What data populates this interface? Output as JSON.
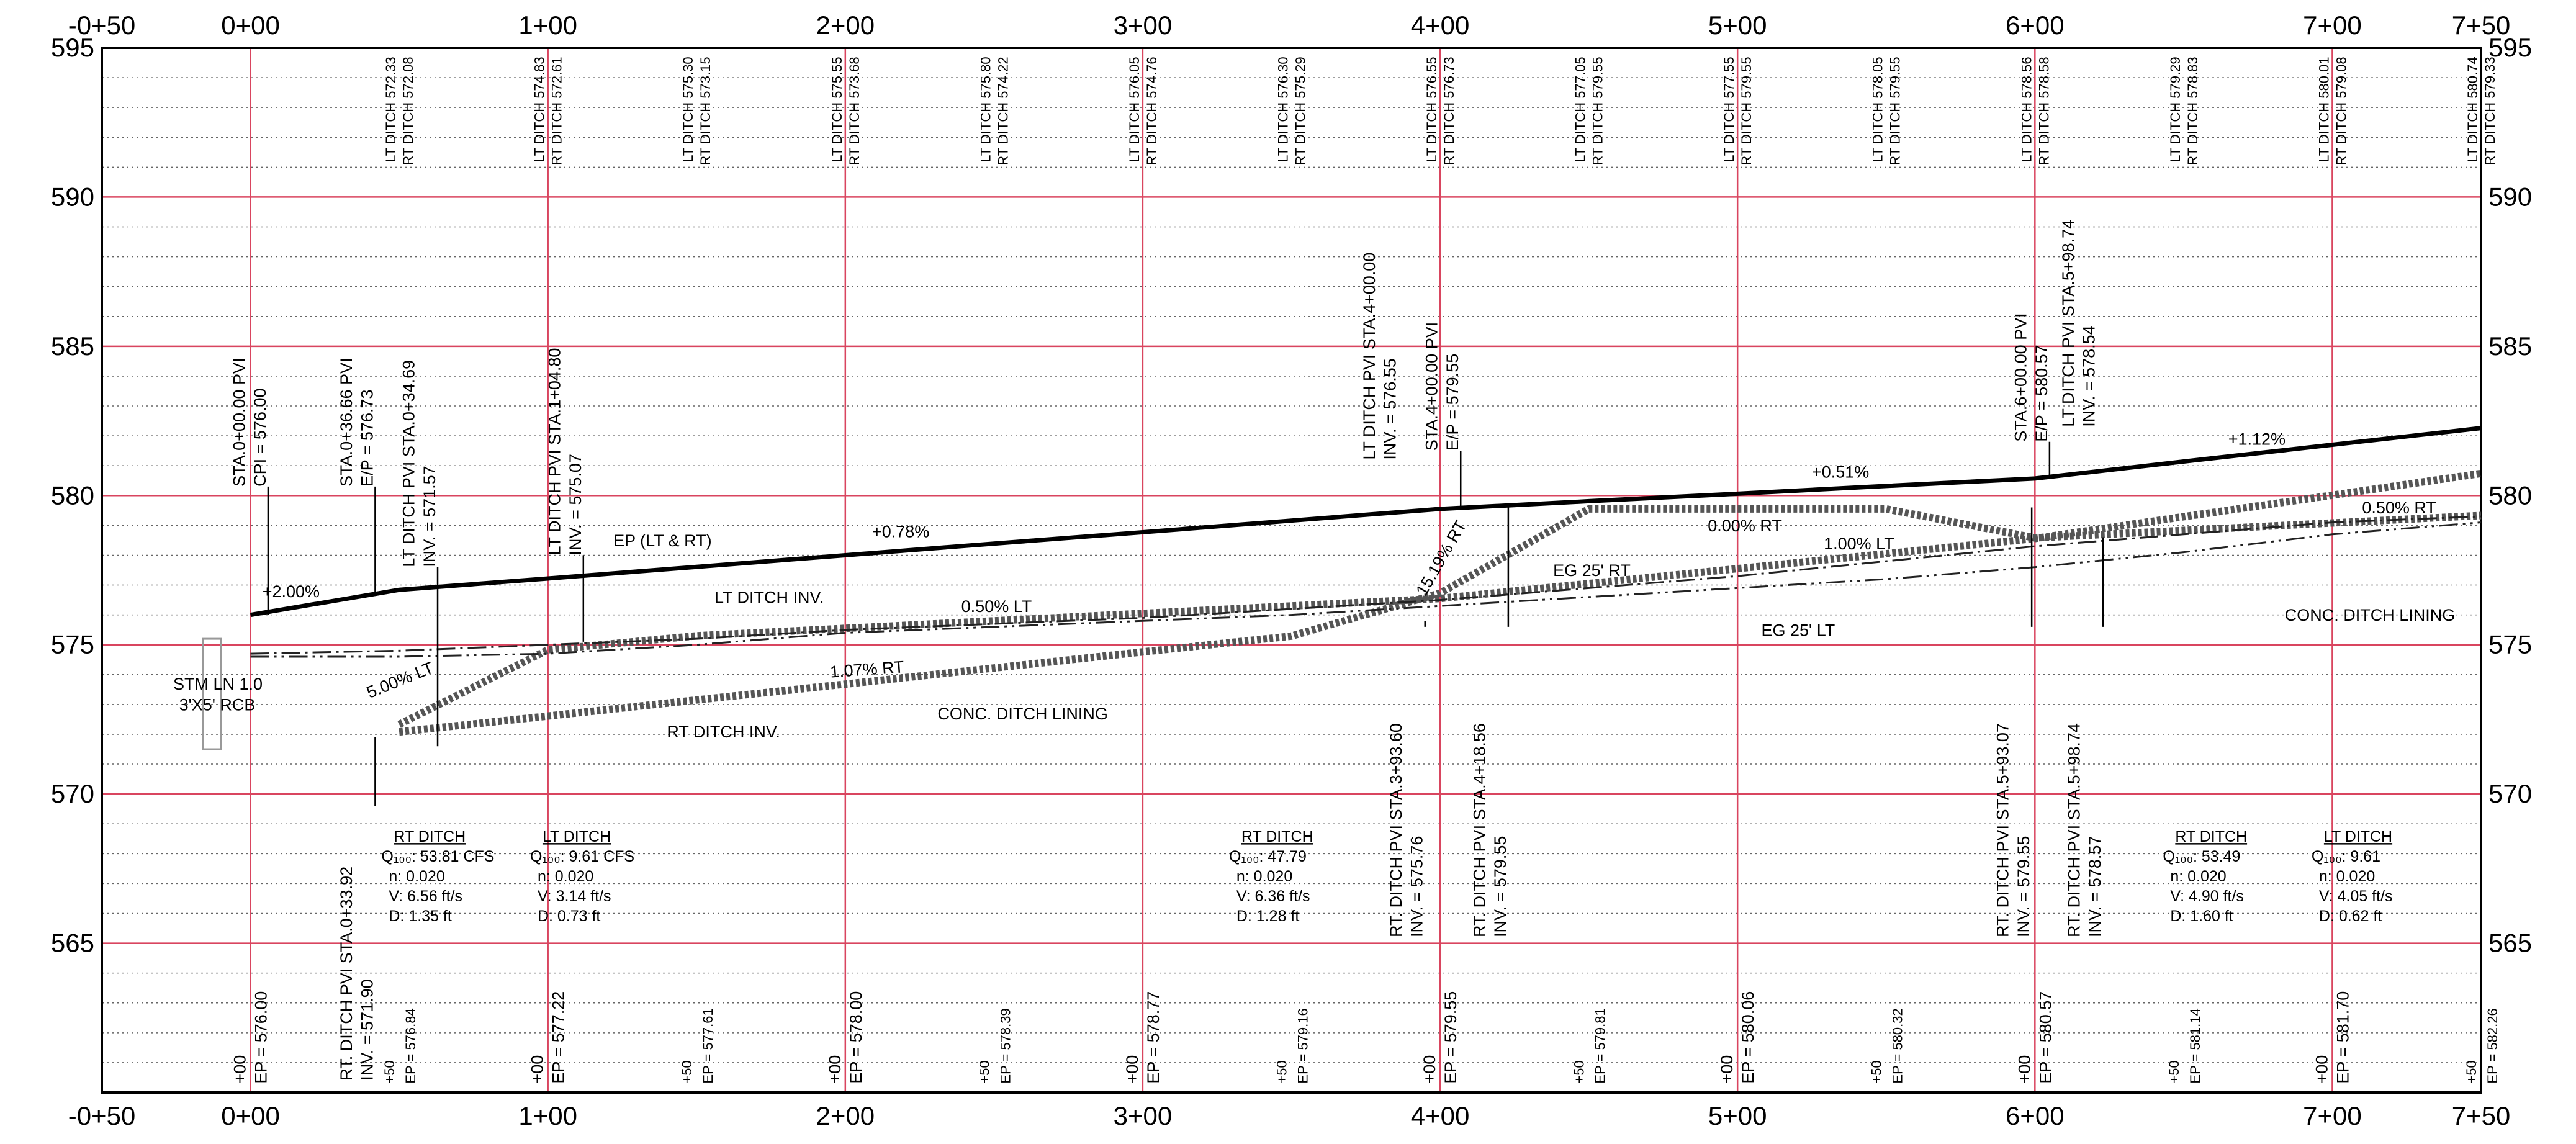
{
  "chart_data": {
    "type": "line",
    "xlim": [
      -50,
      750
    ],
    "xticks": [
      {
        "value": -50,
        "label": "-0+50"
      },
      {
        "value": 0,
        "label": "0+00"
      },
      {
        "value": 100,
        "label": "1+00"
      },
      {
        "value": 200,
        "label": "2+00"
      },
      {
        "value": 300,
        "label": "3+00"
      },
      {
        "value": 400,
        "label": "4+00"
      },
      {
        "value": 500,
        "label": "5+00"
      },
      {
        "value": 600,
        "label": "6+00"
      },
      {
        "value": 700,
        "label": "7+00"
      },
      {
        "value": 750,
        "label": "7+50"
      }
    ],
    "ylim": [
      560,
      595
    ],
    "yticks": [
      565,
      570,
      575,
      580,
      585,
      590,
      595
    ],
    "grid": true,
    "minor_grid": true,
    "x": [
      0,
      50,
      100,
      150,
      200,
      250,
      300,
      350,
      400,
      450,
      500,
      550,
      600,
      650,
      700,
      750
    ],
    "station_labels": [
      "+00",
      "+50",
      "+00",
      "+50",
      "+00",
      "+50",
      "+00",
      "+50",
      "+00",
      "+50",
      "+00",
      "+50",
      "+00",
      "+50",
      "+00",
      "+50"
    ],
    "series": [
      {
        "name": "EP (LT & RT)",
        "color": "#000000",
        "values": [
          576.0,
          576.84,
          577.22,
          577.61,
          578.0,
          578.39,
          578.77,
          579.16,
          579.55,
          579.81,
          580.06,
          580.32,
          580.57,
          581.14,
          581.7,
          582.26
        ],
        "value_labels": [
          "EP = 576.00",
          "EP = 576.84",
          "EP = 577.22",
          "EP = 577.61",
          "EP = 578.00",
          "EP = 578.39",
          "EP = 578.77",
          "EP = 579.16",
          "EP = 579.55",
          "EP = 579.81",
          "EP = 580.06",
          "EP = 580.32",
          "EP = 580.57",
          "EP = 581.14",
          "EP = 581.70",
          "EP = 582.26"
        ]
      },
      {
        "name": "LT DITCH INV.",
        "color": "#555555",
        "values": [
          null,
          572.33,
          574.83,
          575.3,
          575.55,
          575.8,
          576.05,
          576.3,
          576.55,
          577.05,
          577.55,
          578.05,
          578.56,
          579.29,
          580.01,
          580.74
        ],
        "value_labels": [
          null,
          "LT DITCH 572.33",
          "LT DITCH 574.83",
          "LT DITCH 575.30",
          "LT DITCH 575.55",
          "LT DITCH 575.80",
          "LT DITCH 576.05",
          "LT DITCH 576.30",
          "LT DITCH 576.55",
          "LT DITCH 577.05",
          "LT DITCH 577.55",
          "LT DITCH 578.05",
          "LT DITCH 578.56",
          "LT DITCH 579.29",
          "LT DITCH 580.01",
          "LT DITCH 580.74"
        ]
      },
      {
        "name": "RT DITCH INV.",
        "color": "#555555",
        "values": [
          null,
          572.08,
          572.61,
          573.15,
          573.68,
          574.22,
          574.76,
          575.29,
          576.73,
          579.55,
          579.55,
          579.55,
          578.58,
          578.83,
          579.08,
          579.33
        ],
        "value_labels": [
          null,
          "RT DITCH 572.08",
          "RT DITCH 572.61",
          "RT DITCH 573.15",
          "RT DITCH 573.68",
          "RT DITCH 574.22",
          "RT DITCH 574.76",
          "RT DITCH 575.29",
          "RT DITCH 576.73",
          "RT DITCH 579.55",
          "RT DITCH 579.55",
          "RT DITCH 579.55",
          "RT DITCH 578.58",
          "RT DITCH 578.83",
          "RT DITCH 579.08",
          "RT DITCH 579.33"
        ]
      },
      {
        "name": "EG 25' RT",
        "color": "#222222",
        "values": [
          574.7,
          574.8,
          575.0,
          575.2,
          575.5,
          575.7,
          575.9,
          576.2,
          576.5,
          576.9,
          577.3,
          577.8,
          578.3,
          578.7,
          579.1,
          579.3
        ]
      },
      {
        "name": "EG 25' LT",
        "color": "#222222",
        "values": [
          574.6,
          574.6,
          574.7,
          575.0,
          575.4,
          575.6,
          575.8,
          576.0,
          576.3,
          576.6,
          576.9,
          577.2,
          577.6,
          578.1,
          578.7,
          579.1
        ]
      }
    ],
    "annotations": [
      "STA.0+00.00 PVI",
      "CPI = 576.00",
      "STA.0+36.66 PVI",
      "E/P = 576.73",
      "LT DITCH PVI STA.0+34.69",
      "INV. = 571.57",
      "LT DITCH PVI STA.1+04.80",
      "INV. = 575.07",
      "LT DITCH PVI STA.4+00.00",
      "INV. = 576.55",
      "STA.4+00.00 PVI",
      "E/P = 579.55",
      "STA.6+00.00 PVI",
      "E/P = 580.57",
      "LT DITCH PVI STA.5+98.74",
      "INV. = 578.54",
      "RT. DITCH PVI STA.0+33.92",
      "INV. = 571.90",
      "RT. DITCH PVI STA.3+93.60",
      "INV. = 575.76",
      "RT. DITCH PVI STA.4+18.56",
      "INV. = 579.55",
      "RT. DITCH PVI STA.5+93.07",
      "INV. = 579.55",
      "RT. DITCH PVI STA.5+98.74",
      "INV. = 578.57",
      "+2.00%",
      "+0.78%",
      "+0.51%",
      "+1.12%",
      "0.50% LT",
      "1.07% RT",
      "5.00% LT",
      "15.19% RT",
      "0.00% RT",
      "1.00% LT",
      "0.50% RT",
      "CONC. DITCH LINING",
      "CONC. DITCH LINING",
      "STM LN 1.0",
      "3'X5' RCB"
    ],
    "ditch_tables": [
      {
        "title": "RT DITCH",
        "lines": [
          "Q₁₀₀: 53.81 CFS",
          "n: 0.020",
          "V: 6.56 ft/s",
          "D: 1.35 ft"
        ]
      },
      {
        "title": "LT DITCH",
        "lines": [
          "Q₁₀₀: 9.61 CFS",
          "n: 0.020",
          "V: 3.14 ft/s",
          "D: 0.73 ft"
        ]
      },
      {
        "title": "RT DITCH",
        "lines": [
          "Q₁₀₀: 47.79",
          "n: 0.020",
          "V: 6.36 ft/s",
          "D: 1.28 ft"
        ]
      },
      {
        "title": "RT DITCH",
        "lines": [
          "Q₁₀₀: 53.49",
          "n: 0.020",
          "V: 4.90 ft/s",
          "D: 1.60 ft"
        ]
      },
      {
        "title": "LT DITCH",
        "lines": [
          "Q₁₀₀: 9.61",
          "n: 0.020",
          "V: 4.05 ft/s",
          "D: 0.62 ft"
        ]
      }
    ]
  }
}
